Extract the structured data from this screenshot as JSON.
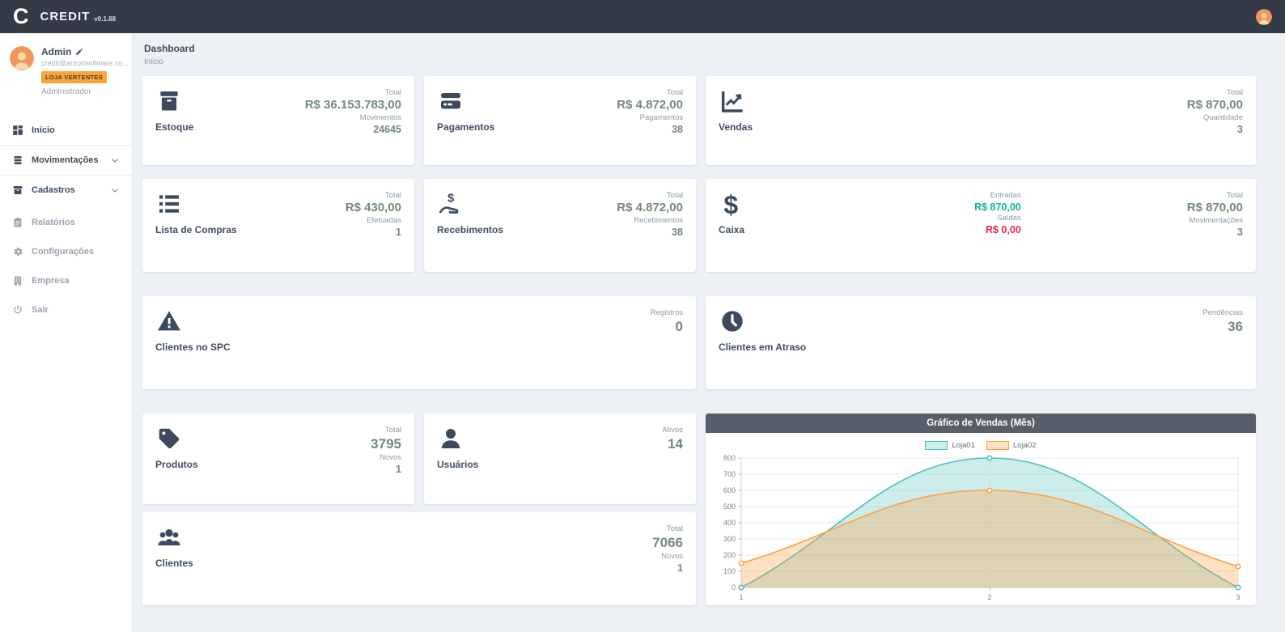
{
  "topbar": {
    "logo_letter": "C",
    "brand": "CREDIT",
    "version": "v0.1.88"
  },
  "sidebar": {
    "user": {
      "name": "Admin",
      "email": "credit@anronsoftware.co...",
      "badge": "LOJA VERTENTES",
      "role": "Administrador"
    },
    "menu": {
      "inicio": "Início",
      "movimentacoes": "Movimentações",
      "cadastros": "Cadastros",
      "relatorios": "Relatórios",
      "configuracoes": "Configurações",
      "empresa": "Empresa",
      "sair": "Sair"
    }
  },
  "breadcrumb": {
    "title": "Dashboard",
    "subtitle": "Início"
  },
  "cards": {
    "estoque": {
      "title": "Estoque",
      "s1_label": "Total",
      "s1_value": "R$ 36.153.783,00",
      "s2_label": "Movimentos",
      "s2_value": "24645"
    },
    "pagamentos": {
      "title": "Pagamentos",
      "s1_label": "Total",
      "s1_value": "R$ 4.872,00",
      "s2_label": "Pagamentos",
      "s2_value": "38"
    },
    "vendas": {
      "title": "Vendas",
      "s1_label": "Total",
      "s1_value": "R$ 870,00",
      "s2_label": "Quantidade",
      "s2_value": "3"
    },
    "lista_compras": {
      "title": "Lista de Compras",
      "s1_label": "Total",
      "s1_value": "R$ 430,00",
      "s2_label": "Efetuadas",
      "s2_value": "1"
    },
    "recebimentos": {
      "title": "Recebimentos",
      "s1_label": "Total",
      "s1_value": "R$ 4.872,00",
      "s2_label": "Recebimentos",
      "s2_value": "38"
    },
    "caixa": {
      "title": "Caixa",
      "e1_label": "Entradas",
      "e1_value": "R$ 870,00",
      "e2_label": "Saídas",
      "e2_value": "R$ 0,00",
      "t1_label": "Total",
      "t1_value": "R$ 870,00",
      "t2_label": "Movimentações",
      "t2_value": "3"
    },
    "clientes_spc": {
      "title": "Clientes no SPC",
      "s1_label": "Registros",
      "s1_value": "0"
    },
    "clientes_atraso": {
      "title": "Clientes em Atraso",
      "s1_label": "Pendências",
      "s1_value": "36"
    },
    "produtos": {
      "title": "Produtos",
      "s1_label": "Total",
      "s1_value": "3795",
      "s2_label": "Novos",
      "s2_value": "1"
    },
    "usuarios": {
      "title": "Usuários",
      "s1_label": "Ativos",
      "s1_value": "14"
    },
    "clientes": {
      "title": "Clientes",
      "s1_label": "Total",
      "s1_value": "7066",
      "s2_label": "Novos",
      "s2_value": "1"
    }
  },
  "chart_data": {
    "type": "area",
    "title": "Gráfico de Vendas (Mês)",
    "x": [
      1,
      2,
      3
    ],
    "series": [
      {
        "name": "Loja01",
        "values": [
          0,
          800,
          0
        ],
        "color": "#4bc0c0",
        "fill": "rgba(75,192,192,0.28)"
      },
      {
        "name": "Loja02",
        "values": [
          150,
          600,
          130
        ],
        "color": "#ff9f40",
        "fill": "rgba(255,159,64,0.32)"
      }
    ],
    "ylim": [
      0,
      800
    ],
    "ytick_step": 100,
    "xlabel": "",
    "ylabel": "",
    "legend_position": "top",
    "grid": true
  },
  "colors": {
    "accent_orange": "#f9a53d",
    "green": "#13b795",
    "red": "#e8294f",
    "value": "#74897c",
    "topbar": "#343a46",
    "chart_header": "#575e69"
  }
}
